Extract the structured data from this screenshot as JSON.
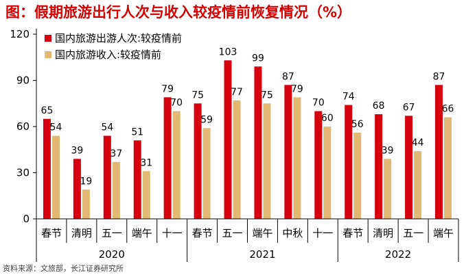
{
  "title": "图：假期旅游出行人次与收入较疫情前恢复情况（%）",
  "source": "资料来源：文旅部，长江证券研究所",
  "colors": {
    "trips": "#d7000f",
    "revenue": "#e2b872",
    "axis": "#000000"
  },
  "chart_data": {
    "type": "bar",
    "title": "假期旅游出行人次与收入较疫情前恢复情况（%）",
    "ylim": [
      0,
      120
    ],
    "yticks": [
      0,
      30,
      60,
      90,
      120
    ],
    "ytick_labels": [
      "0",
      "30",
      "60",
      "90",
      "120"
    ],
    "legend_position": "top-left",
    "categories": [
      "春节",
      "清明",
      "五一",
      "端午",
      "十一",
      "春节",
      "五一",
      "端午",
      "中秋",
      "十一",
      "春节",
      "清明",
      "五一",
      "端午"
    ],
    "groups": [
      {
        "label": "2020",
        "start": 0,
        "end": 4
      },
      {
        "label": "2021",
        "start": 5,
        "end": 9
      },
      {
        "label": "2022",
        "start": 10,
        "end": 13
      }
    ],
    "series": [
      {
        "name": "国内旅游出游人次:较疫情前",
        "color": "#d7000f",
        "values": [
          65,
          39,
          54,
          51,
          79,
          75,
          103,
          99,
          87,
          70,
          74,
          68,
          67,
          87
        ],
        "labels": [
          "65",
          "39",
          "54",
          "51",
          "79",
          "75",
          "103",
          "99",
          "87",
          "70",
          "74",
          "68",
          "67",
          "87"
        ]
      },
      {
        "name": "国内旅游收入:较疫情前",
        "color": "#e2b872",
        "values": [
          54,
          19,
          37,
          31,
          70,
          59,
          77,
          75,
          79,
          60,
          56,
          39,
          44,
          66
        ],
        "labels": [
          "54",
          "19",
          "37",
          "31",
          "70",
          "59",
          "77",
          "75",
          "79",
          "60",
          "56",
          "39",
          "44",
          "66"
        ]
      }
    ]
  }
}
